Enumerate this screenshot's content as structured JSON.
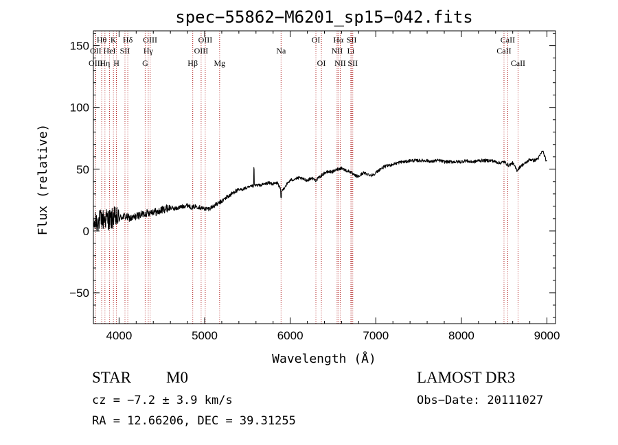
{
  "chart_data": {
    "type": "line",
    "title": "spec−55862−M6201_sp15−042.fits",
    "xlabel": "Wavelength (Å)",
    "ylabel": "Flux (relative)",
    "xlim": [
      3700,
      9100
    ],
    "ylim": [
      -75,
      162
    ],
    "x_ticks": [
      4000,
      5000,
      6000,
      7000,
      8000,
      9000
    ],
    "x_tick_labels": [
      "4000",
      "5000",
      "6000",
      "7000",
      "8000",
      "9000"
    ],
    "y_ticks": [
      -50,
      0,
      50,
      100,
      150
    ],
    "y_tick_labels": [
      "−50",
      "0",
      "50",
      "100",
      "150"
    ],
    "series": [
      {
        "name": "flux",
        "color": "#000000",
        "x": [
          3700,
          3750,
          3800,
          3850,
          3900,
          3950,
          4000,
          4050,
          4100,
          4150,
          4200,
          4250,
          4300,
          4350,
          4400,
          4450,
          4500,
          4550,
          4600,
          4650,
          4700,
          4750,
          4800,
          4850,
          4900,
          4950,
          5000,
          5050,
          5100,
          5150,
          5200,
          5250,
          5300,
          5350,
          5400,
          5450,
          5500,
          5550,
          5600,
          5650,
          5700,
          5750,
          5800,
          5850,
          5900,
          5950,
          6000,
          6050,
          6100,
          6150,
          6200,
          6250,
          6300,
          6350,
          6400,
          6450,
          6500,
          6550,
          6600,
          6650,
          6700,
          6750,
          6800,
          6850,
          6900,
          6950,
          7000,
          7050,
          7100,
          7150,
          7200,
          7250,
          7300,
          7350,
          7400,
          7450,
          7500,
          7550,
          7600,
          7650,
          7700,
          7750,
          7800,
          7850,
          7900,
          7950,
          8000,
          8050,
          8100,
          8150,
          8200,
          8250,
          8300,
          8350,
          8400,
          8450,
          8500,
          8550,
          8600,
          8650,
          8700,
          8750,
          8800,
          8850,
          8900,
          8950,
          9000
        ],
        "values": [
          5,
          8,
          9,
          10,
          9,
          11,
          10,
          12,
          11,
          10,
          12,
          13,
          14,
          15,
          16,
          15,
          17,
          18,
          19,
          18,
          19,
          20,
          21,
          19,
          20,
          19,
          18,
          18,
          20,
          22,
          24,
          27,
          29,
          32,
          33,
          34,
          35,
          36,
          37,
          37,
          38,
          39,
          38,
          39,
          32,
          37,
          41,
          42,
          43,
          42,
          41,
          43,
          41,
          44,
          47,
          48,
          48,
          50,
          51,
          49,
          48,
          45,
          44,
          47,
          46,
          45,
          47,
          50,
          52,
          53,
          54,
          55,
          56,
          56,
          57,
          57,
          57,
          57,
          57,
          56,
          57,
          57,
          56,
          56,
          56,
          56,
          56,
          57,
          56,
          56,
          57,
          57,
          57,
          57,
          56,
          55,
          56,
          53,
          55,
          49,
          53,
          55,
          58,
          57,
          59,
          65,
          55
        ]
      }
    ],
    "line_markers": [
      {
        "label": "Hθ",
        "wavelength": 3797,
        "row": 1
      },
      {
        "label": "OII",
        "wavelength": 3727,
        "row": 2
      },
      {
        "label": "OIII",
        "wavelength": 3727,
        "row": 3
      },
      {
        "label": "K",
        "wavelength": 3934,
        "row": 1
      },
      {
        "label": "HeI",
        "wavelength": 3889,
        "row": 2
      },
      {
        "label": "Hη",
        "wavelength": 3835,
        "row": 3
      },
      {
        "label": "SII",
        "wavelength": 4069,
        "row": 2
      },
      {
        "label": "H",
        "wavelength": 3969,
        "row": 3
      },
      {
        "label": "Hδ",
        "wavelength": 4102,
        "row": 1
      },
      {
        "label": "OIII",
        "wavelength": 4363,
        "row": 1
      },
      {
        "label": "Hγ",
        "wavelength": 4341,
        "row": 2
      },
      {
        "label": "G",
        "wavelength": 4305,
        "row": 3
      },
      {
        "label": "OIII",
        "wavelength": 5007,
        "row": 1
      },
      {
        "label": "OIII",
        "wavelength": 4959,
        "row": 2
      },
      {
        "label": "Hβ",
        "wavelength": 4861,
        "row": 3
      },
      {
        "label": "Mg",
        "wavelength": 5175,
        "row": 3
      },
      {
        "label": "Na",
        "wavelength": 5893,
        "row": 2
      },
      {
        "label": "OI",
        "wavelength": 6300,
        "row": 1
      },
      {
        "label": "OI",
        "wavelength": 6364,
        "row": 3
      },
      {
        "label": "Hα",
        "wavelength": 6563,
        "row": 1
      },
      {
        "label": "SII",
        "wavelength": 6717,
        "row": 1
      },
      {
        "label": "NII",
        "wavelength": 6548,
        "row": 2
      },
      {
        "label": "Li",
        "wavelength": 6708,
        "row": 2
      },
      {
        "label": "NII",
        "wavelength": 6584,
        "row": 3
      },
      {
        "label": "SII",
        "wavelength": 6731,
        "row": 3
      },
      {
        "label": "CaII",
        "wavelength": 8542,
        "row": 1
      },
      {
        "label": "CaII",
        "wavelength": 8498,
        "row": 2
      },
      {
        "label": "CaII",
        "wavelength": 8662,
        "row": 3
      }
    ],
    "marker_color": "#b22222",
    "grid": false
  },
  "info": {
    "class": "STAR",
    "subclass": "M0",
    "survey": "LAMOST DR3",
    "cz": "cz = −7.2 ± 3.9 km/s",
    "obs_date": "Obs−Date: 20111027",
    "radec": "RA =  12.66206, DEC =  39.31255"
  }
}
